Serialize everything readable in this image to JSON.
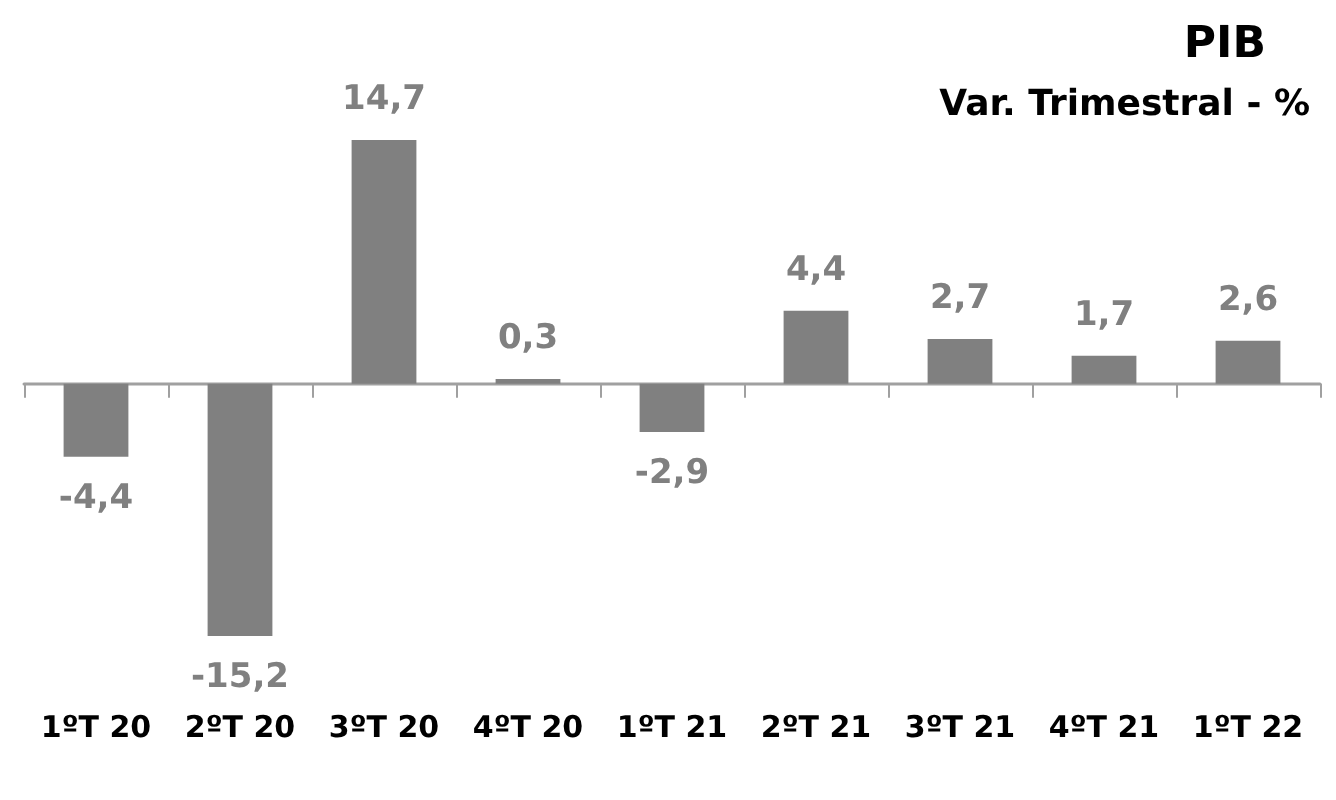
{
  "chart_data": {
    "type": "bar",
    "title": "PIB",
    "subtitle": "Var. Trimestral - %",
    "categories": [
      "1ºT 20",
      "2ºT 20",
      "3ºT 20",
      "4ºT 20",
      "1ºT 21",
      "2ºT 21",
      "3ºT 21",
      "4ºT 21",
      "1ºT 22"
    ],
    "values": [
      -4.4,
      -15.2,
      14.7,
      0.3,
      -2.9,
      4.4,
      2.7,
      1.7,
      2.6
    ],
    "value_labels": [
      "-4,4",
      "-15,2",
      "14,7",
      "0,3",
      "-2,9",
      "4,4",
      "2,7",
      "1,7",
      "2,6"
    ],
    "color": "#808080"
  }
}
